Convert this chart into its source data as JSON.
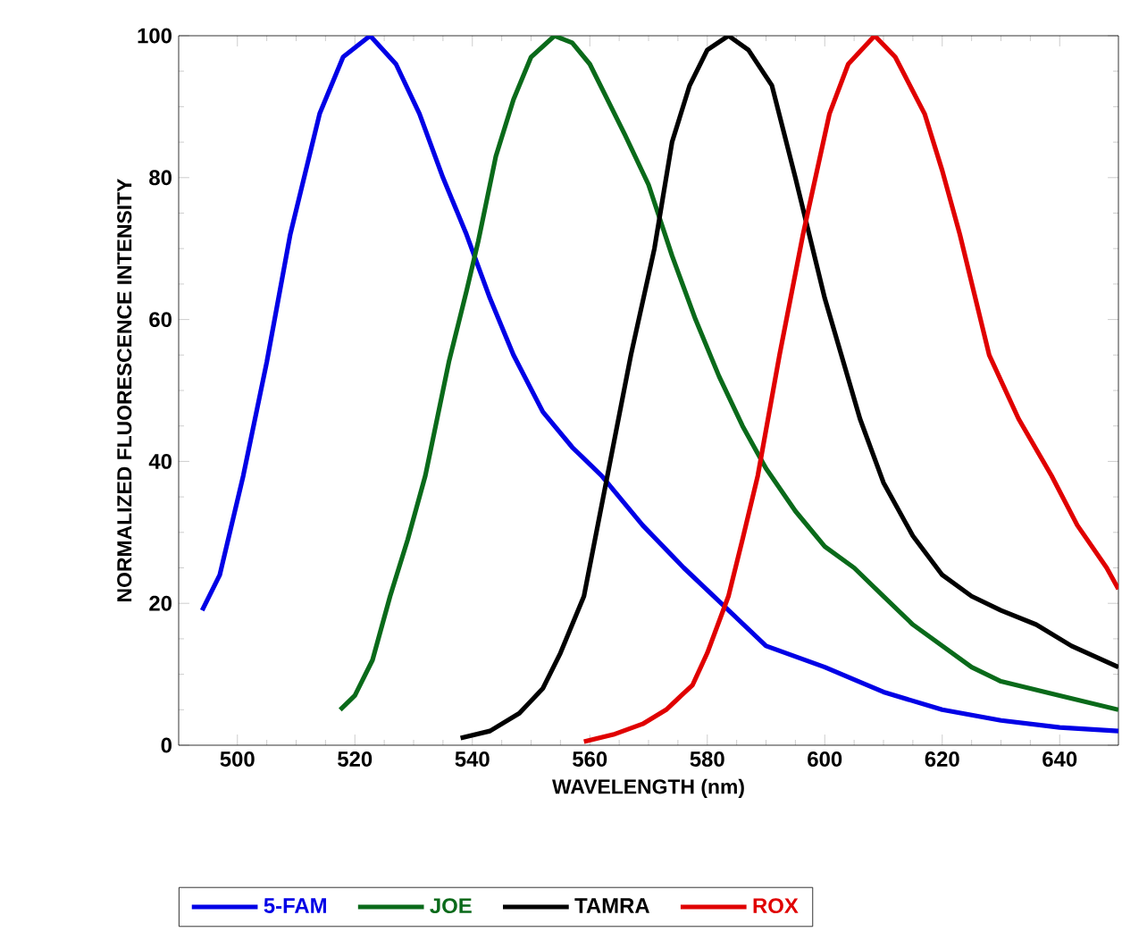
{
  "chart_data": {
    "type": "line",
    "xlabel": "WAVELENGTH (nm)",
    "ylabel": "NORMALIZED FLUORESCENCE INTENSITY",
    "xlim": [
      490,
      650
    ],
    "xticks": [
      500,
      520,
      540,
      560,
      580,
      600,
      620,
      640
    ],
    "ylim": [
      0,
      100
    ],
    "yticks": [
      0,
      20,
      40,
      60,
      80,
      100
    ],
    "legend": "bottom",
    "marker": "none",
    "series": [
      {
        "name": "5-FAM",
        "color": "#0000e6",
        "x": [
          494,
          497,
          501,
          505,
          509,
          514,
          518,
          522.6,
          527,
          531,
          535,
          539,
          543,
          547,
          552,
          557,
          562,
          569,
          576,
          583,
          590,
          600,
          610,
          620,
          630,
          640,
          650
        ],
        "values": [
          19,
          24,
          38,
          54,
          72,
          89,
          97,
          100,
          96,
          89,
          80,
          72,
          63,
          55,
          47,
          42,
          38,
          31,
          25,
          19.5,
          14,
          11,
          7.5,
          5,
          3.5,
          2.5,
          2
        ]
      },
      {
        "name": "JOE",
        "color": "#0a6a1a",
        "x": [
          517.5,
          520,
          523,
          526,
          529,
          532,
          536,
          539,
          541,
          544,
          547,
          550,
          554,
          557,
          560,
          563,
          566,
          570,
          574,
          578,
          582,
          586,
          590,
          595,
          600,
          605,
          610,
          615,
          620,
          625,
          630,
          640,
          650
        ],
        "values": [
          5,
          7,
          12,
          21,
          29,
          38,
          54,
          64,
          71,
          83,
          91,
          97,
          100,
          99,
          96,
          91,
          86,
          79,
          69,
          60,
          52,
          45,
          39,
          33,
          28,
          25,
          21,
          17,
          14,
          11,
          9,
          7,
          5
        ]
      },
      {
        "name": "TAMRA",
        "color": "#000000",
        "x": [
          538,
          543,
          548,
          552,
          555,
          559,
          563,
          567,
          571,
          574,
          577,
          580,
          583.6,
          587,
          591,
          595,
          600,
          606,
          610,
          615,
          620,
          625,
          630,
          636,
          642,
          650
        ],
        "values": [
          1,
          2,
          4.5,
          8,
          13,
          21,
          38,
          55,
          70,
          85,
          93,
          98,
          100,
          98,
          93,
          80,
          63,
          46,
          37,
          29.5,
          24,
          21,
          19,
          17,
          14,
          11
        ]
      },
      {
        "name": "ROX",
        "color": "#e00000",
        "x": [
          559,
          564,
          569,
          573,
          577.5,
          580,
          583.6,
          586,
          588.6,
          592.3,
          596.3,
          600.8,
          604,
          608.5,
          612,
          617,
          620,
          623,
          628,
          633,
          638.6,
          643,
          648,
          650
        ],
        "values": [
          0.5,
          1.5,
          3,
          5,
          8.5,
          13,
          21,
          29,
          38,
          55,
          72,
          89,
          96,
          100,
          97,
          89,
          81,
          72,
          55,
          46,
          38,
          31,
          25,
          22
        ]
      }
    ]
  }
}
